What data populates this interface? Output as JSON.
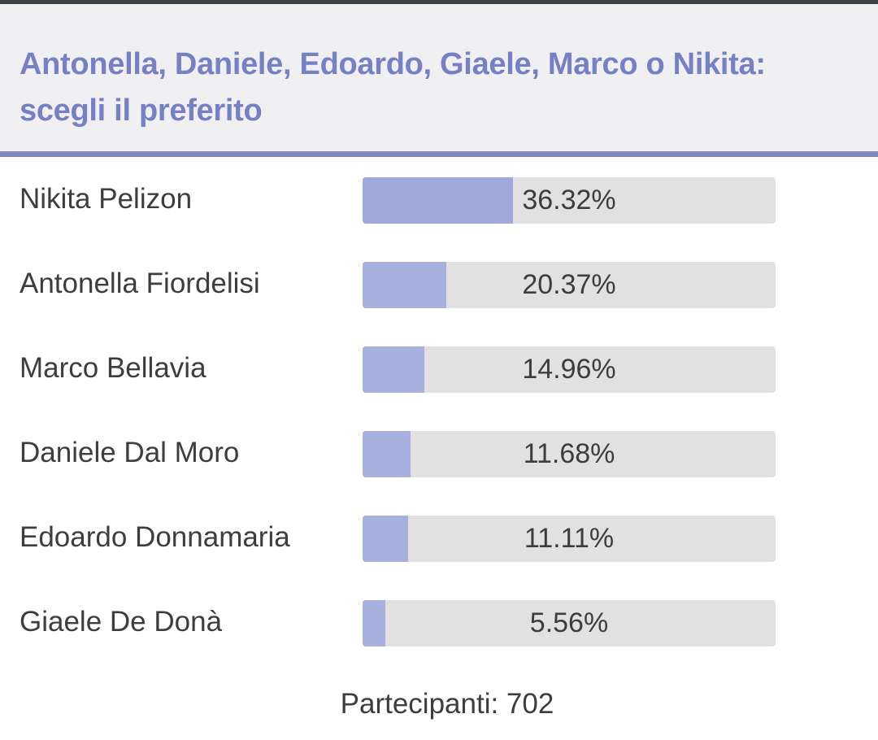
{
  "poll": {
    "title": "Antonella, Daniele, Edoardo, Giaele, Marco o Nikita: scegli il preferito",
    "options": [
      {
        "label": "Nikita Pelizon",
        "percent_text": "36.32%",
        "percent": 36.32,
        "leading": true
      },
      {
        "label": "Antonella Fiordelisi",
        "percent_text": "20.37%",
        "percent": 20.37,
        "leading": false
      },
      {
        "label": "Marco Bellavia",
        "percent_text": "14.96%",
        "percent": 14.96,
        "leading": false
      },
      {
        "label": "Daniele Dal Moro",
        "percent_text": "11.68%",
        "percent": 11.68,
        "leading": false
      },
      {
        "label": "Edoardo Donnamaria",
        "percent_text": "11.11%",
        "percent": 11.11,
        "leading": false
      },
      {
        "label": "Giaele De Donà",
        "percent_text": "5.56%",
        "percent": 5.56,
        "leading": false
      }
    ],
    "participants_text": "Partecipanti: 702"
  },
  "colors": {
    "title": "#7580c5",
    "header_background": "#f0f0f2",
    "header_rule": "#7f88bf",
    "bar_track": "#e1e1e1",
    "bar_fill": "#a8b0dd",
    "text": "#3d3d3d"
  }
}
